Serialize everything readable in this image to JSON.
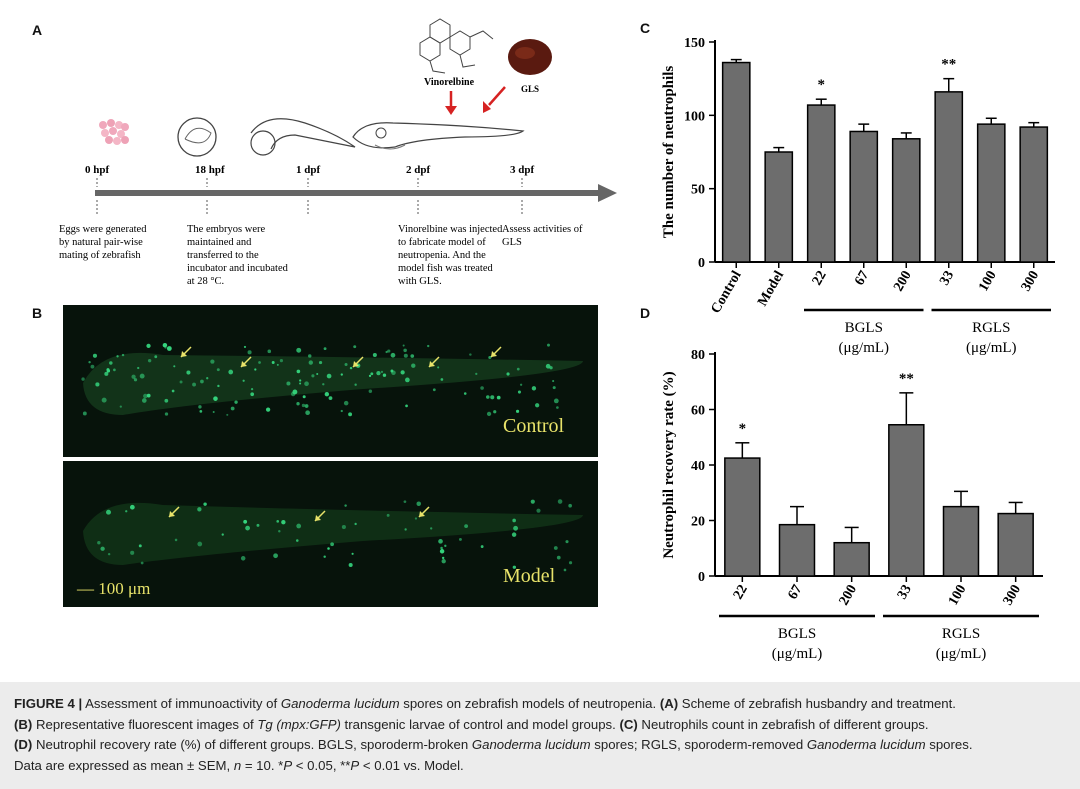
{
  "panels": {
    "a": "A",
    "b": "B",
    "c": "C",
    "d": "D"
  },
  "timeline": {
    "stages": [
      {
        "time": "0 hpf",
        "desc": [
          "Eggs were generated",
          "by natural pair-wise",
          "mating of zebrafish"
        ]
      },
      {
        "time": "18 hpf",
        "desc": [
          "The embryos were",
          "maintained and",
          "transferred to the",
          "incubator and incubated",
          "at 28 °C."
        ]
      },
      {
        "time": "1 dpf",
        "desc": []
      },
      {
        "time": "2 dpf",
        "desc": [
          "Vinorelbine was injected",
          "to fabricate model of",
          "neutropenia. And the",
          "model fish was treated",
          "with GLS."
        ]
      },
      {
        "time": "3 dpf",
        "desc": [
          "Assess activities of",
          "GLS"
        ]
      }
    ],
    "vinorelbine_label": "Vinorelbine",
    "gls_label": "GLS",
    "label_color": "#d62222"
  },
  "images": {
    "top_label": "Control",
    "bottom_label": "Model",
    "scale_bar": "— 100 μm",
    "label_color": "#e8e36a",
    "fluor_color": "#35d67e"
  },
  "chart_data": [
    {
      "type": "bar",
      "id": "C",
      "ylabel": "The number of neutrophils",
      "categories": [
        "Control",
        "Model",
        "22",
        "67",
        "200",
        "33",
        "100",
        "300"
      ],
      "values": [
        136,
        75,
        107,
        89,
        84,
        116,
        94,
        92
      ],
      "errors": [
        2,
        3,
        4,
        5,
        4,
        9,
        4,
        3
      ],
      "significance": [
        "",
        "",
        "*",
        "",
        "",
        "**",
        "",
        ""
      ],
      "ylim": [
        0,
        150
      ],
      "yticks": [
        0,
        50,
        100,
        150
      ],
      "groups": [
        {
          "label": "BGLS",
          "unit": "(μg/mL)",
          "from": 2,
          "to": 4
        },
        {
          "label": "RGLS",
          "unit": "(μg/mL)",
          "from": 5,
          "to": 7
        }
      ]
    },
    {
      "type": "bar",
      "id": "D",
      "ylabel": "Neutrophil recovery rate (%)",
      "categories": [
        "22",
        "67",
        "200",
        "33",
        "100",
        "300"
      ],
      "values": [
        42.5,
        18.5,
        12,
        54.5,
        25,
        22.5
      ],
      "errors": [
        5.5,
        6.5,
        5.5,
        11.5,
        5.5,
        4
      ],
      "significance": [
        "*",
        "",
        "",
        "**",
        "",
        ""
      ],
      "ylim": [
        0,
        80
      ],
      "yticks": [
        0,
        20,
        40,
        60,
        80
      ],
      "groups": [
        {
          "label": "BGLS",
          "unit": "(μg/mL)",
          "from": 0,
          "to": 2
        },
        {
          "label": "RGLS",
          "unit": "(μg/mL)",
          "from": 3,
          "to": 5
        }
      ]
    }
  ],
  "bar_color": "#6d6d6d",
  "caption": {
    "fig": "FIGURE 4 |",
    "l1_a": " Assessment of immunoactivity of ",
    "l1_sp": "Ganoderma lucidum",
    "l1_b": " spores on zebrafish models of neutropenia. ",
    "l1_A": "(A)",
    "l1_c": " Scheme of zebrafish husbandry and treatment.",
    "l2_B": "(B)",
    "l2_a": " Representative fluorescent images of ",
    "l2_tg": "Tg (mpx:GFP)",
    "l2_b": " transgenic larvae of control and model groups. ",
    "l2_C": "(C)",
    "l2_c": " Neutrophils count in zebrafish of different groups.",
    "l3_D": "(D)",
    "l3_a": " Neutrophil recovery rate (%) of different groups. BGLS, sporoderm-broken ",
    "l3_sp": "Ganoderma lucidum",
    "l3_b": " spores; RGLS, sporoderm-removed ",
    "l3_sp2": "Ganoderma lucidum",
    "l3_c": " spores.",
    "l4_a": "Data are expressed as mean ± SEM, ",
    "l4_n": "n",
    "l4_b": " = 10. *",
    "l4_p1": "P",
    "l4_c": " < 0.05, **",
    "l4_p2": "P",
    "l4_d": " < 0.01 vs. Model."
  }
}
